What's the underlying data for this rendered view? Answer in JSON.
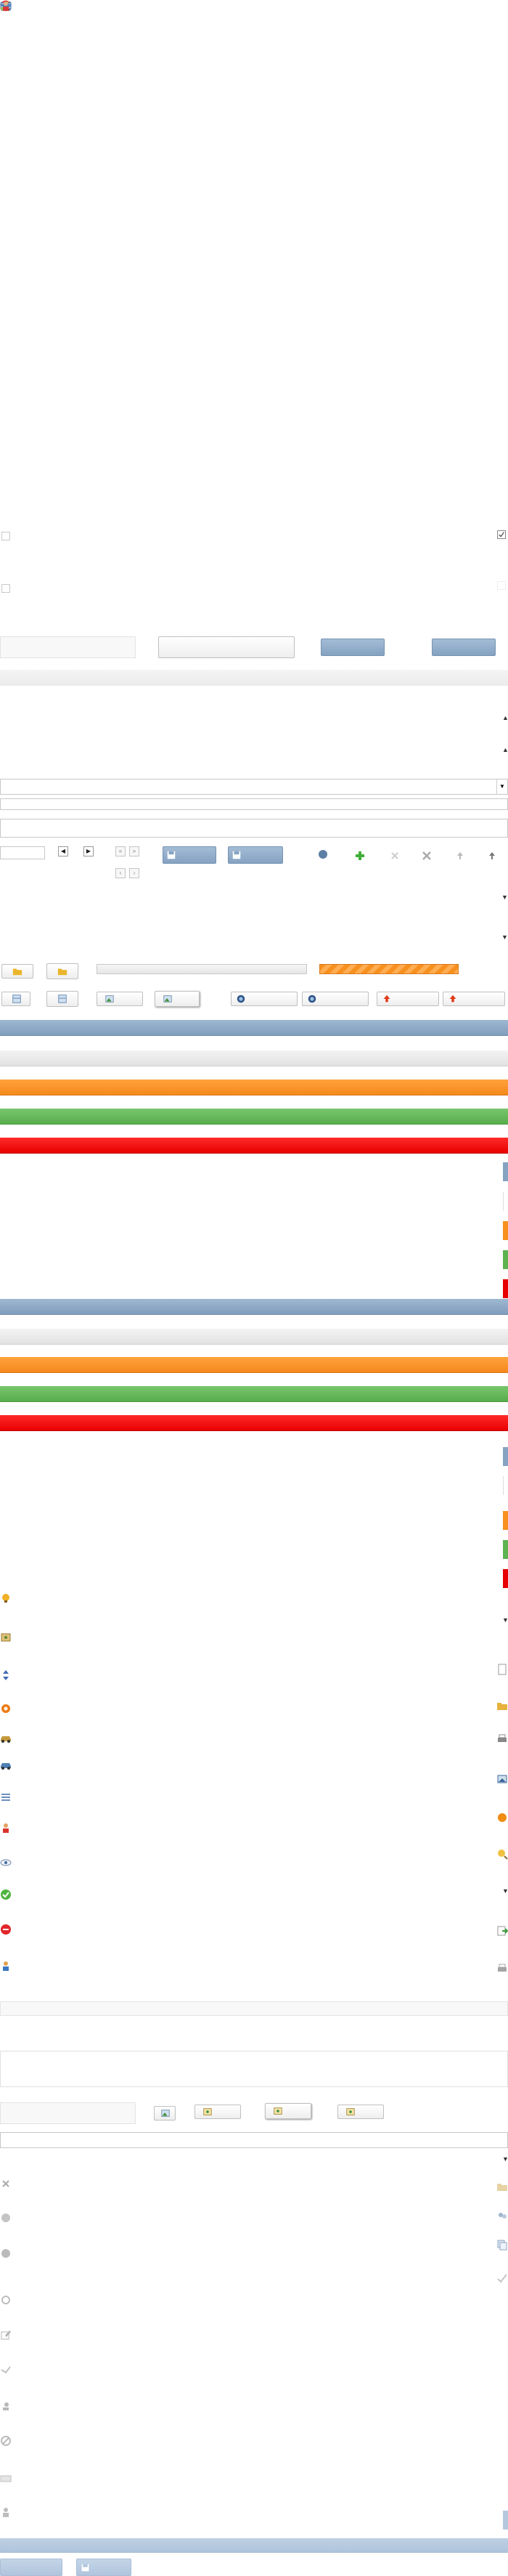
{
  "theme": {
    "accent_blue": "#86a3c2",
    "accent_orange": "#f7901f",
    "accent_green": "#5cb34f",
    "accent_red": "#e60000",
    "neutral_grey": "#eeeeee"
  },
  "icons_top": [
    "back-arrow-icon",
    "edit-pencil-icon",
    "user-group-icon",
    "add-image-icon",
    "calendar-icon",
    "settings-hand-icon",
    "shield-icon",
    "calendar-blue-icon",
    "check-icon",
    "no-entry-icon",
    "close-x-icon",
    "settings-users-icon",
    "edit-document-icon",
    "approve-hand-icon",
    "card-icon",
    "forward-icon",
    "person-red-icon"
  ],
  "toolbar": {
    "save_label": "",
    "save_as_label": ""
  },
  "checkbox_states": {
    "left_top": false,
    "right_top": true,
    "left_bottom": false,
    "right_bottom": false
  },
  "status_bars": [
    "blue",
    "grey",
    "orange",
    "green",
    "red"
  ],
  "icons_middle": [
    "lightbulb-icon",
    "photo-group-icon",
    "arrows-vertical-icon",
    "orange-circle-icon",
    "car-icon",
    "car-blue-icon",
    "list-icon",
    "person-warning-icon",
    "eye-icon",
    "green-check-circle-icon",
    "red-stop-circle-icon",
    "person-icon"
  ],
  "icons_middle_right": [
    "document-icon",
    "folder-photo-icon",
    "printer-icon",
    "image-icon",
    "orange-sun-icon",
    "search-user-icon",
    "dropdown-arrow-icon",
    "export-icon",
    "print-grey-icon"
  ],
  "icons_bottom": [
    "grey-x-icon",
    "grey-circle-icon",
    "grey-circle2-icon",
    "grey-gear-icon",
    "grey-edit-icon",
    "grey-hand-icon",
    "grey-user-icon",
    "grey-block-icon",
    "grey-card-icon",
    "grey-person-icon"
  ],
  "icons_bottom_right": [
    "folder-grey-icon",
    "group-grey-icon",
    "copy-icon",
    "check-grey-icon"
  ]
}
